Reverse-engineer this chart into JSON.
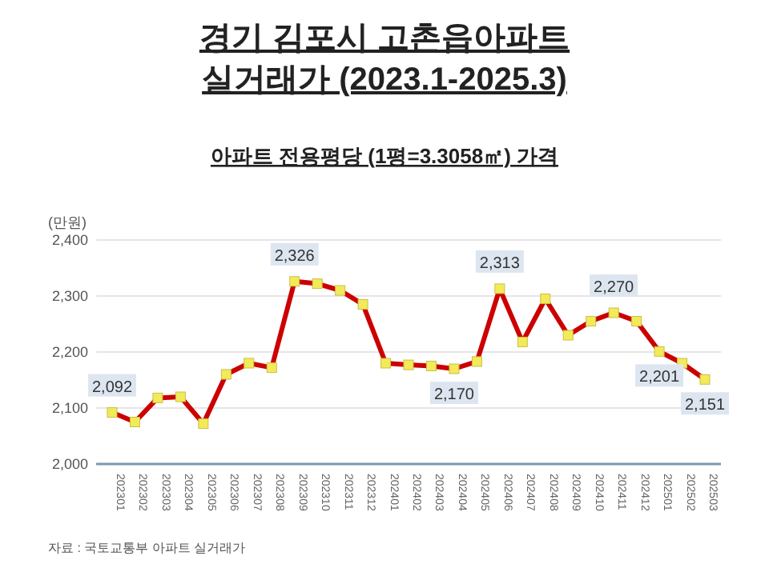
{
  "chart_data": {
    "type": "line",
    "title": "경기 김포시 고촌읍아파트\n실거래가 (2023.1-2025.3)",
    "subtitle": "아파트 전용평당 (1평=3.3058㎡) 가격",
    "ylabel": "(만원)",
    "annotations": [
      "자료 : 국토교통부 아파트 실거래가"
    ],
    "categories": [
      "202301",
      "202302",
      "202303",
      "202304",
      "202305",
      "202306",
      "202307",
      "202308",
      "202309",
      "202310",
      "202311",
      "202312",
      "202401",
      "202402",
      "202403",
      "202404",
      "202405",
      "202406",
      "202407",
      "202408",
      "202409",
      "202410",
      "202411",
      "202412",
      "202501",
      "202502",
      "202503"
    ],
    "series": [
      {
        "color": "#cc0000",
        "values": [
          2092,
          2075,
          2118,
          2120,
          2072,
          2160,
          2180,
          2172,
          2326,
          2322,
          2310,
          2285,
          2180,
          2177,
          2175,
          2170,
          2183,
          2313,
          2218,
          2295,
          2230,
          2255,
          2270,
          2255,
          2201,
          2180,
          2151
        ],
        "value_labels": [
          "2,092",
          null,
          null,
          null,
          null,
          null,
          null,
          null,
          "2,326",
          null,
          null,
          null,
          null,
          null,
          null,
          "2,170",
          null,
          "2,313",
          null,
          null,
          null,
          null,
          "2,270",
          null,
          "2,201",
          null,
          "2,151"
        ]
      }
    ],
    "ylim": [
      2000,
      2400
    ],
    "yticks": [
      {
        "value": 2000,
        "label": "2,000"
      },
      {
        "value": 2100,
        "label": "2,100"
      },
      {
        "value": 2200,
        "label": "2,200"
      },
      {
        "value": 2300,
        "label": "2,300"
      },
      {
        "value": 2400,
        "label": "2,400"
      }
    ],
    "grid": "y",
    "marker": "square",
    "line_style": "solid"
  }
}
